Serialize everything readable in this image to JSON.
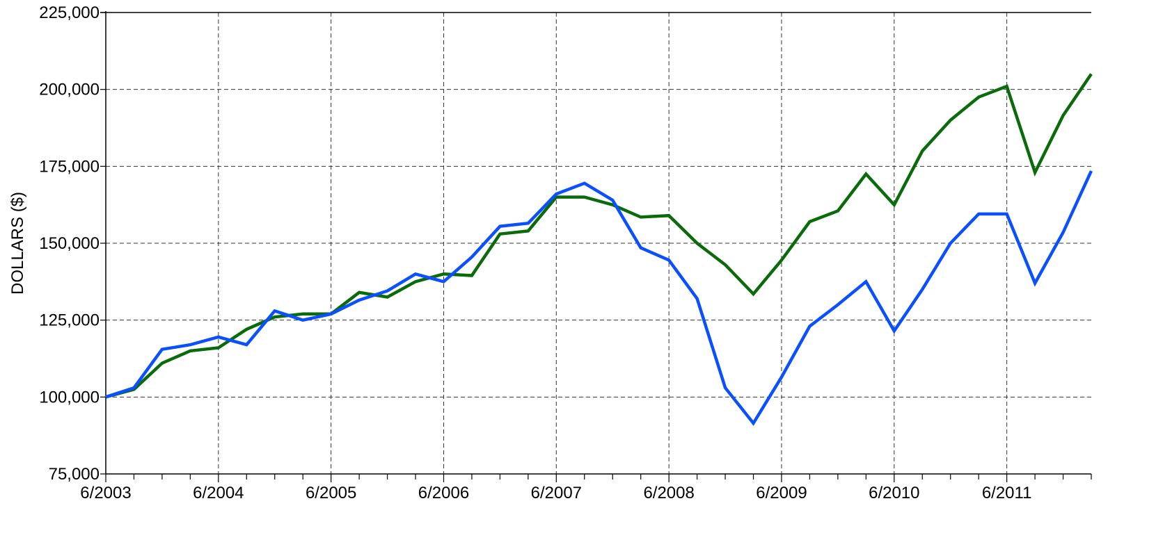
{
  "chart_data": {
    "type": "line",
    "title": "",
    "xlabel": "",
    "ylabel": "DOLLARS ($)",
    "ylim": [
      75000,
      225000
    ],
    "y_ticks": [
      75000,
      100000,
      125000,
      150000,
      175000,
      200000,
      225000
    ],
    "y_tick_labels": [
      "75,000",
      "100,000",
      "125,000",
      "150,000",
      "175,000",
      "200,000",
      "225,000"
    ],
    "x_tick_labels": [
      "6/2003",
      "6/2004",
      "6/2005",
      "6/2006",
      "6/2007",
      "6/2008",
      "6/2009",
      "6/2010",
      "6/2011"
    ],
    "x_range_years": [
      2003.5,
      2012.25
    ],
    "grid": true,
    "legend": "none",
    "x": [
      2003.5,
      2003.75,
      2004.0,
      2004.25,
      2004.5,
      2004.75,
      2005.0,
      2005.25,
      2005.5,
      2005.75,
      2006.0,
      2006.25,
      2006.5,
      2006.75,
      2007.0,
      2007.25,
      2007.5,
      2007.75,
      2008.0,
      2008.25,
      2008.5,
      2008.75,
      2009.0,
      2009.25,
      2009.5,
      2009.75,
      2010.0,
      2010.25,
      2010.5,
      2010.75,
      2011.0,
      2011.25,
      2011.5,
      2011.75,
      2012.0,
      2012.25
    ],
    "series": [
      {
        "color": "#0A6B0A",
        "values": [
          100000,
          102500,
          111000,
          115000,
          116000,
          122000,
          126000,
          127000,
          127000,
          134000,
          132500,
          137500,
          140000,
          139500,
          153000,
          154000,
          165000,
          165000,
          162500,
          158500,
          159000,
          150000,
          143000,
          133500,
          144500,
          157000,
          160500,
          172500,
          162500,
          180000,
          190000,
          197500,
          201000,
          173000,
          191500,
          205000
        ]
      },
      {
        "color": "#0A50FF",
        "values": [
          100000,
          103000,
          115500,
          117000,
          119500,
          117000,
          128000,
          125000,
          127000,
          131500,
          134500,
          140000,
          137500,
          145500,
          155500,
          156500,
          166000,
          169500,
          164000,
          148500,
          144500,
          132000,
          103000,
          91500,
          106500,
          123000,
          130000,
          137500,
          121500,
          135000,
          150000,
          159500,
          159500,
          137000,
          153500,
          173500
        ]
      }
    ]
  }
}
